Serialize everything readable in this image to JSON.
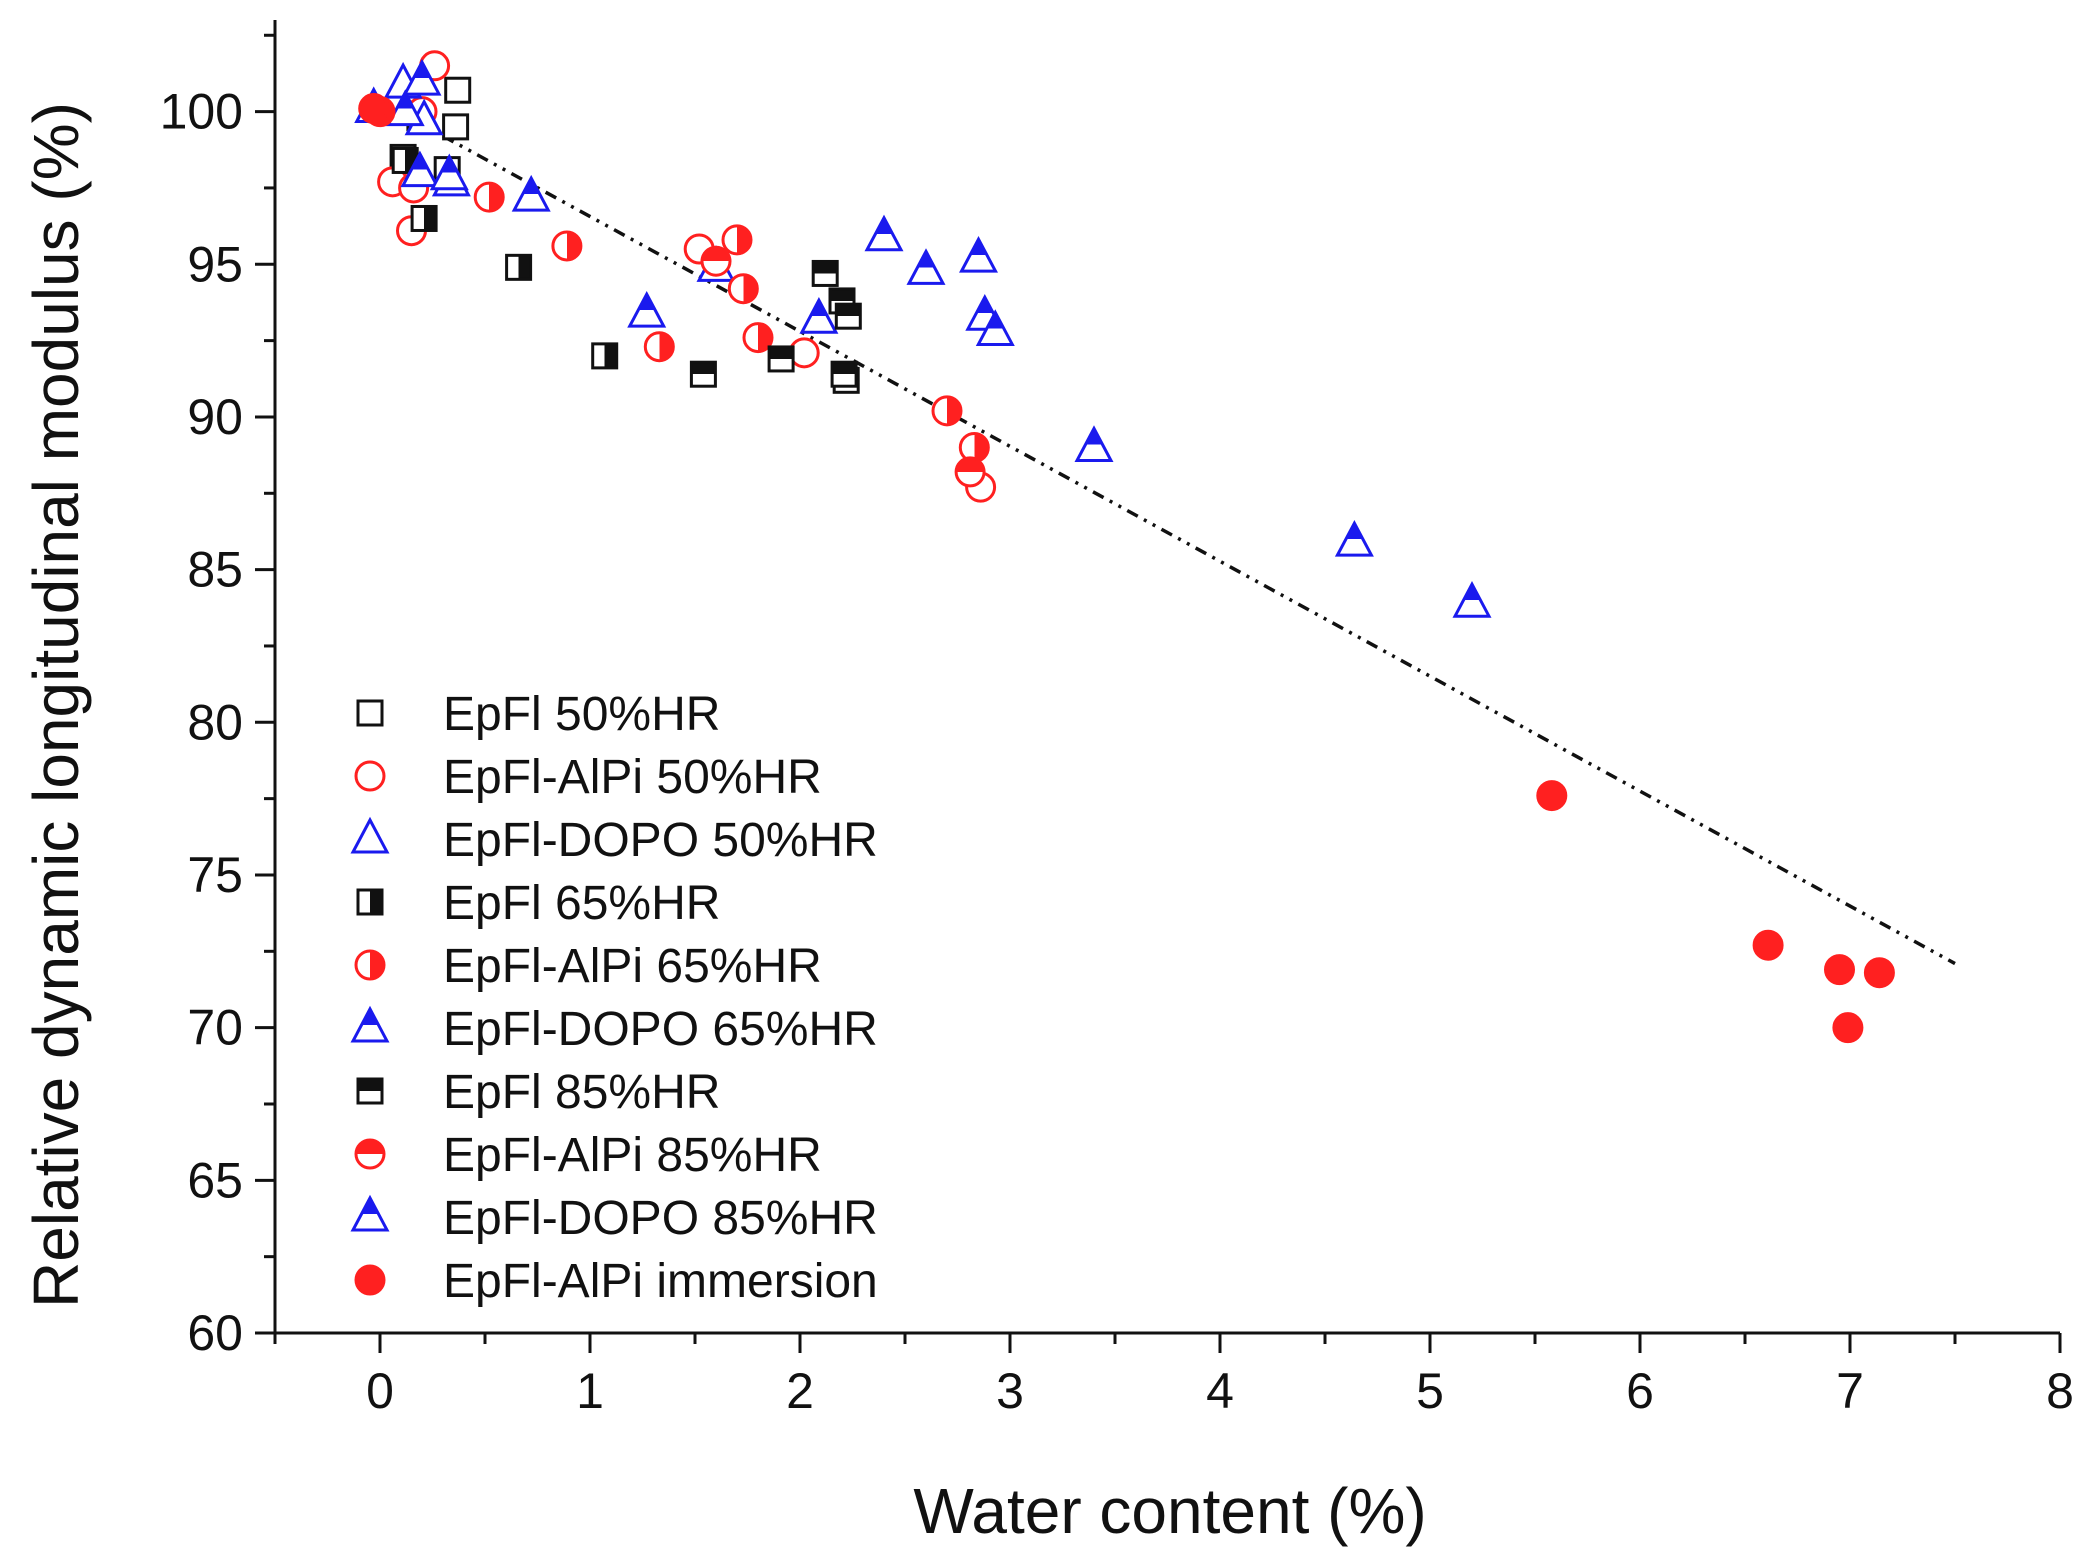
{
  "chart_data": {
    "type": "scatter",
    "title": "",
    "xlabel": "Water content (%)",
    "ylabel": "Relative dynamic longitudinal modulus (%)",
    "xlim": [
      -0.5,
      8
    ],
    "ylim": [
      60,
      103
    ],
    "xticks": [
      "0",
      "1",
      "2",
      "3",
      "4",
      "5",
      "6",
      "7",
      "8"
    ],
    "yticks": [
      "60",
      "65",
      "70",
      "75",
      "80",
      "85",
      "90",
      "95",
      "100"
    ],
    "legend_position": "bottom-left",
    "trendline": {
      "style": "dash-dot",
      "color": "#111111",
      "x": [
        0.3,
        7.5
      ],
      "y": [
        99.2,
        72.1
      ]
    },
    "series": [
      {
        "name": "EpFl 50%HR",
        "color": "#111111",
        "marker": "square",
        "fill": "open",
        "points": [
          [
            0.37,
            100.7
          ],
          [
            0.36,
            99.5
          ],
          [
            0.32,
            98.1
          ],
          [
            0.19,
            99.8
          ],
          [
            2.22,
            91.2
          ],
          [
            0.11,
            98.5
          ]
        ]
      },
      {
        "name": "EpFl-AlPi 50%HR",
        "color": "#ff2020",
        "marker": "circle",
        "fill": "open",
        "points": [
          [
            0.26,
            101.5
          ],
          [
            0.06,
            97.7
          ],
          [
            0.15,
            96.1
          ],
          [
            0.2,
            100.0
          ],
          [
            2.86,
            87.7
          ],
          [
            2.02,
            92.1
          ],
          [
            1.52,
            95.5
          ],
          [
            0.16,
            97.5
          ]
        ]
      },
      {
        "name": "EpFl-DOPO 50%HR",
        "color": "#1a1aee",
        "marker": "triangle",
        "fill": "open",
        "points": [
          [
            0.11,
            100.9
          ],
          [
            0.21,
            99.7
          ],
          [
            0.34,
            97.7
          ],
          [
            -0.03,
            100.1
          ],
          [
            1.6,
            94.9
          ]
        ]
      },
      {
        "name": "EpFl 65%HR",
        "color": "#111111",
        "marker": "square",
        "fill": "half-right",
        "points": [
          [
            0.21,
            96.5
          ],
          [
            0.66,
            94.9
          ],
          [
            1.07,
            92.0
          ],
          [
            0.12,
            98.4
          ]
        ]
      },
      {
        "name": "EpFl-AlPi 65%HR",
        "color": "#ff2020",
        "marker": "circle",
        "fill": "half-right",
        "points": [
          [
            0.52,
            97.2
          ],
          [
            0.89,
            95.6
          ],
          [
            1.7,
            95.8
          ],
          [
            1.73,
            94.2
          ],
          [
            1.33,
            92.3
          ],
          [
            1.8,
            92.6
          ],
          [
            2.7,
            90.2
          ],
          [
            2.83,
            89.0
          ]
        ]
      },
      {
        "name": "EpFl-DOPO 65%HR",
        "color": "#1a1aee",
        "marker": "triangle",
        "fill": "half-top",
        "points": [
          [
            0.72,
            97.2
          ],
          [
            1.27,
            93.4
          ],
          [
            2.4,
            95.9
          ],
          [
            2.6,
            94.8
          ],
          [
            2.85,
            95.2
          ],
          [
            2.88,
            93.3
          ],
          [
            2.93,
            92.8
          ],
          [
            2.09,
            93.2
          ],
          [
            3.4,
            89.0
          ],
          [
            0.19,
            98.0
          ]
        ]
      },
      {
        "name": "EpFl 85%HR",
        "color": "#111111",
        "marker": "square",
        "fill": "half-top",
        "points": [
          [
            2.12,
            94.7
          ],
          [
            2.2,
            93.8
          ],
          [
            2.23,
            93.3
          ],
          [
            1.54,
            91.4
          ],
          [
            1.91,
            91.9
          ],
          [
            2.21,
            91.4
          ]
        ]
      },
      {
        "name": "EpFl-AlPi 85%HR",
        "color": "#ff2020",
        "marker": "circle",
        "fill": "half-top",
        "points": [
          [
            2.81,
            88.2
          ],
          [
            1.6,
            95.1
          ]
        ]
      },
      {
        "name": "EpFl-DOPO 85%HR",
        "color": "#1a1aee",
        "marker": "triangle",
        "fill": "half-top",
        "points": [
          [
            0.2,
            101.0
          ],
          [
            0.12,
            100.0
          ],
          [
            4.64,
            85.9
          ],
          [
            5.2,
            83.9
          ],
          [
            0.33,
            97.9
          ]
        ]
      },
      {
        "name": "EpFl-AlPi immersion",
        "color": "#ff2020",
        "marker": "circle",
        "fill": "full",
        "points": [
          [
            0.0,
            100.0
          ],
          [
            -0.03,
            100.1
          ],
          [
            5.58,
            77.6
          ],
          [
            6.61,
            72.7
          ],
          [
            6.95,
            71.9
          ],
          [
            7.14,
            71.8
          ],
          [
            6.99,
            70.0
          ]
        ]
      }
    ]
  }
}
